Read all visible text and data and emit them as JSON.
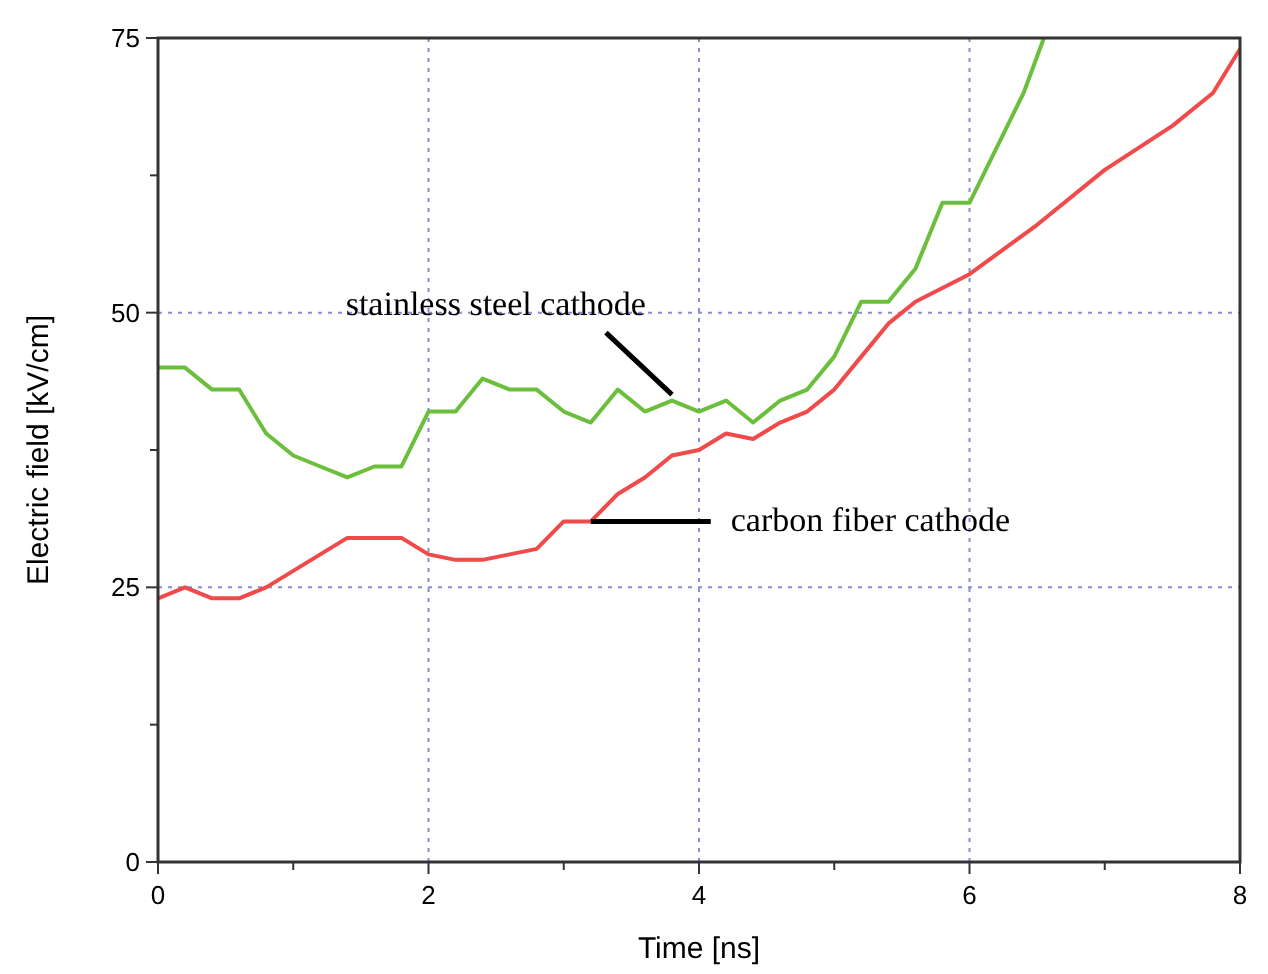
{
  "chart_data": {
    "type": "line",
    "xlabel": "Time [ns]",
    "ylabel": "Electric field [kV/cm]",
    "xlim": [
      0,
      8
    ],
    "ylim": [
      0,
      75
    ],
    "xticks": [
      0,
      {
        "value": 1,
        "label": null
      },
      2,
      {
        "value": 3,
        "label": null
      },
      4,
      {
        "value": 5,
        "label": null
      },
      6,
      {
        "value": 7,
        "label": null
      },
      8
    ],
    "yticks": [
      0,
      {
        "value": 12.5,
        "label": null
      },
      25,
      {
        "value": 37.5,
        "label": null
      },
      50,
      {
        "value": 62.5,
        "label": null
      },
      75
    ],
    "grid": true,
    "line_style": "solid",
    "marker": "none",
    "series": [
      {
        "name": "stainless steel cathode",
        "color": "#6cbf3c",
        "x": [
          0,
          0.2,
          0.4,
          0.6,
          0.8,
          1.0,
          1.2,
          1.4,
          1.6,
          1.8,
          2.0,
          2.2,
          2.4,
          2.6,
          2.8,
          3.0,
          3.2,
          3.4,
          3.6,
          3.8,
          4.0,
          4.2,
          4.4,
          4.6,
          4.8,
          5.0,
          5.2,
          5.4,
          5.6,
          5.8,
          6.0,
          6.2,
          6.4,
          6.55
        ],
        "values": [
          45,
          45,
          43,
          43,
          39,
          37,
          36,
          35,
          36,
          36,
          41,
          41,
          44,
          43,
          43,
          41,
          40,
          43,
          41,
          42,
          41,
          42,
          40,
          42,
          43,
          46,
          51,
          51,
          54,
          60,
          60,
          65,
          70,
          75
        ]
      },
      {
        "name": "carbon fiber cathode",
        "color": "#f04a4a",
        "x": [
          0,
          0.2,
          0.4,
          0.6,
          0.8,
          1.0,
          1.2,
          1.4,
          1.6,
          1.8,
          2.0,
          2.2,
          2.4,
          2.6,
          2.8,
          3.0,
          3.2,
          3.4,
          3.6,
          3.8,
          4.0,
          4.2,
          4.4,
          4.6,
          4.8,
          5.0,
          5.2,
          5.4,
          5.6,
          6.0,
          6.5,
          7.0,
          7.5,
          7.8,
          8.0
        ],
        "values": [
          24,
          25,
          24,
          24,
          25,
          26.5,
          28,
          29.5,
          29.5,
          29.5,
          28,
          27.5,
          27.5,
          28,
          28.5,
          31,
          31,
          33.5,
          35,
          37,
          37.5,
          39,
          38.5,
          40,
          41,
          43,
          46,
          49,
          51,
          53.5,
          58,
          63,
          67,
          70,
          74
        ]
      }
    ]
  }
}
